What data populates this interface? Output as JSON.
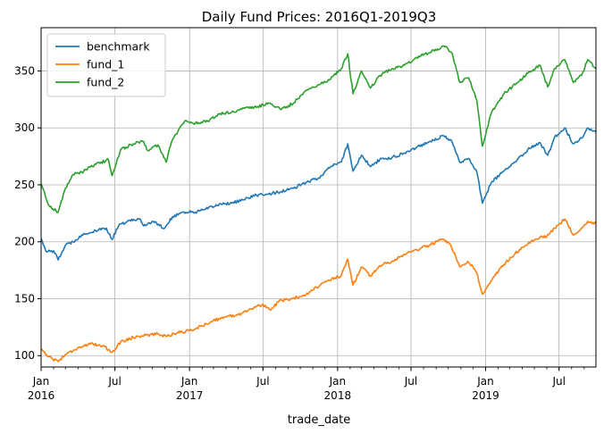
{
  "chart_data": {
    "type": "line",
    "title": "Daily Fund Prices: 2016Q1-2019Q3",
    "xlabel": "trade_date",
    "ylabel": "",
    "x_range": [
      "2016-01-01",
      "2019-09-30"
    ],
    "ylim": [
      90,
      388
    ],
    "grid": true,
    "legend_position": "top-left",
    "x_ticks": [
      {
        "date": "2016-01-01",
        "label": "Jan",
        "sublabel": "2016"
      },
      {
        "date": "2016-07-01",
        "label": "Jul",
        "sublabel": ""
      },
      {
        "date": "2017-01-01",
        "label": "Jan",
        "sublabel": "2017"
      },
      {
        "date": "2017-07-01",
        "label": "Jul",
        "sublabel": ""
      },
      {
        "date": "2018-01-01",
        "label": "Jan",
        "sublabel": "2018"
      },
      {
        "date": "2018-07-01",
        "label": "Jul",
        "sublabel": ""
      },
      {
        "date": "2019-01-01",
        "label": "Jan",
        "sublabel": "2019"
      },
      {
        "date": "2019-07-01",
        "label": "Jul",
        "sublabel": ""
      }
    ],
    "y_ticks": [
      100,
      150,
      200,
      250,
      300,
      350
    ],
    "series": [
      {
        "name": "benchmark",
        "color": "#1f77b4",
        "points": [
          [
            "2016-01-01",
            203
          ],
          [
            "2016-01-15",
            191
          ],
          [
            "2016-02-01",
            192
          ],
          [
            "2016-02-12",
            184
          ],
          [
            "2016-03-01",
            197
          ],
          [
            "2016-03-20",
            200
          ],
          [
            "2016-04-10",
            206
          ],
          [
            "2016-05-01",
            208
          ],
          [
            "2016-05-20",
            210
          ],
          [
            "2016-06-10",
            212
          ],
          [
            "2016-06-24",
            202
          ],
          [
            "2016-07-10",
            214
          ],
          [
            "2016-08-01",
            218
          ],
          [
            "2016-09-01",
            220
          ],
          [
            "2016-09-10",
            214
          ],
          [
            "2016-10-01",
            218
          ],
          [
            "2016-11-01",
            212
          ],
          [
            "2016-11-20",
            222
          ],
          [
            "2016-12-15",
            226
          ],
          [
            "2017-01-15",
            226
          ],
          [
            "2017-02-15",
            229
          ],
          [
            "2017-03-15",
            233
          ],
          [
            "2017-04-15",
            234
          ],
          [
            "2017-05-15",
            237
          ],
          [
            "2017-06-15",
            241
          ],
          [
            "2017-07-15",
            242
          ],
          [
            "2017-08-15",
            244
          ],
          [
            "2017-09-15",
            247
          ],
          [
            "2017-10-15",
            252
          ],
          [
            "2017-11-15",
            256
          ],
          [
            "2017-12-15",
            266
          ],
          [
            "2018-01-10",
            270
          ],
          [
            "2018-01-26",
            286
          ],
          [
            "2018-02-08",
            262
          ],
          [
            "2018-03-01",
            276
          ],
          [
            "2018-03-23",
            266
          ],
          [
            "2018-04-15",
            272
          ],
          [
            "2018-05-15",
            274
          ],
          [
            "2018-06-15",
            278
          ],
          [
            "2018-07-15",
            283
          ],
          [
            "2018-08-15",
            288
          ],
          [
            "2018-09-20",
            293
          ],
          [
            "2018-10-10",
            288
          ],
          [
            "2018-10-29",
            270
          ],
          [
            "2018-11-20",
            273
          ],
          [
            "2018-12-10",
            262
          ],
          [
            "2018-12-24",
            234
          ],
          [
            "2019-01-15",
            252
          ],
          [
            "2019-02-15",
            262
          ],
          [
            "2019-03-15",
            270
          ],
          [
            "2019-04-15",
            281
          ],
          [
            "2019-05-15",
            287
          ],
          [
            "2019-06-03",
            276
          ],
          [
            "2019-06-20",
            292
          ],
          [
            "2019-07-15",
            300
          ],
          [
            "2019-08-05",
            286
          ],
          [
            "2019-08-25",
            291
          ],
          [
            "2019-09-10",
            300
          ],
          [
            "2019-09-30",
            296
          ]
        ]
      },
      {
        "name": "fund_1",
        "color": "#ff7f0e",
        "points": [
          [
            "2016-01-01",
            106
          ],
          [
            "2016-01-20",
            99
          ],
          [
            "2016-02-12",
            95
          ],
          [
            "2016-03-01",
            101
          ],
          [
            "2016-04-01",
            107
          ],
          [
            "2016-05-01",
            110
          ],
          [
            "2016-06-01",
            109
          ],
          [
            "2016-06-24",
            103
          ],
          [
            "2016-07-15",
            112
          ],
          [
            "2016-08-15",
            116
          ],
          [
            "2016-09-15",
            118
          ],
          [
            "2016-10-15",
            119
          ],
          [
            "2016-11-04",
            117
          ],
          [
            "2016-12-01",
            120
          ],
          [
            "2017-01-01",
            122
          ],
          [
            "2017-02-01",
            126
          ],
          [
            "2017-03-01",
            131
          ],
          [
            "2017-04-01",
            134
          ],
          [
            "2017-05-01",
            136
          ],
          [
            "2017-06-01",
            141
          ],
          [
            "2017-07-01",
            145
          ],
          [
            "2017-07-20",
            140
          ],
          [
            "2017-08-10",
            148
          ],
          [
            "2017-09-10",
            150
          ],
          [
            "2017-10-10",
            153
          ],
          [
            "2017-11-10",
            160
          ],
          [
            "2017-12-10",
            166
          ],
          [
            "2018-01-10",
            170
          ],
          [
            "2018-01-26",
            185
          ],
          [
            "2018-02-08",
            162
          ],
          [
            "2018-03-01",
            178
          ],
          [
            "2018-03-23",
            170
          ],
          [
            "2018-04-15",
            179
          ],
          [
            "2018-05-15",
            183
          ],
          [
            "2018-06-15",
            189
          ],
          [
            "2018-07-15",
            193
          ],
          [
            "2018-08-15",
            197
          ],
          [
            "2018-09-15",
            202
          ],
          [
            "2018-10-05",
            198
          ],
          [
            "2018-10-29",
            178
          ],
          [
            "2018-11-20",
            182
          ],
          [
            "2018-12-10",
            173
          ],
          [
            "2018-12-24",
            154
          ],
          [
            "2019-01-15",
            166
          ],
          [
            "2019-02-15",
            180
          ],
          [
            "2019-03-15",
            190
          ],
          [
            "2019-04-15",
            198
          ],
          [
            "2019-05-15",
            204
          ],
          [
            "2019-06-01",
            205
          ],
          [
            "2019-06-20",
            212
          ],
          [
            "2019-07-15",
            220
          ],
          [
            "2019-08-05",
            206
          ],
          [
            "2019-08-25",
            212
          ],
          [
            "2019-09-10",
            218
          ],
          [
            "2019-09-30",
            216
          ]
        ]
      },
      {
        "name": "fund_2",
        "color": "#2ca02c",
        "points": [
          [
            "2016-01-01",
            251
          ],
          [
            "2016-01-20",
            232
          ],
          [
            "2016-02-12",
            226
          ],
          [
            "2016-03-01",
            247
          ],
          [
            "2016-03-20",
            259
          ],
          [
            "2016-04-15",
            262
          ],
          [
            "2016-05-15",
            268
          ],
          [
            "2016-06-15",
            272
          ],
          [
            "2016-06-24",
            258
          ],
          [
            "2016-07-15",
            281
          ],
          [
            "2016-08-15",
            286
          ],
          [
            "2016-09-10",
            288
          ],
          [
            "2016-09-20",
            280
          ],
          [
            "2016-10-15",
            285
          ],
          [
            "2016-11-04",
            270
          ],
          [
            "2016-11-20",
            290
          ],
          [
            "2016-12-20",
            306
          ],
          [
            "2017-01-15",
            304
          ],
          [
            "2017-02-15",
            306
          ],
          [
            "2017-03-15",
            312
          ],
          [
            "2017-04-15",
            314
          ],
          [
            "2017-05-15",
            317
          ],
          [
            "2017-06-15",
            318
          ],
          [
            "2017-07-15",
            322
          ],
          [
            "2017-08-15",
            316
          ],
          [
            "2017-09-15",
            322
          ],
          [
            "2017-10-15",
            333
          ],
          [
            "2017-11-15",
            338
          ],
          [
            "2017-12-15",
            343
          ],
          [
            "2018-01-10",
            352
          ],
          [
            "2018-01-26",
            365
          ],
          [
            "2018-02-08",
            330
          ],
          [
            "2018-03-01",
            350
          ],
          [
            "2018-03-23",
            335
          ],
          [
            "2018-04-15",
            346
          ],
          [
            "2018-05-15",
            352
          ],
          [
            "2018-06-15",
            355
          ],
          [
            "2018-07-15",
            362
          ],
          [
            "2018-08-15",
            366
          ],
          [
            "2018-09-20",
            372
          ],
          [
            "2018-10-10",
            366
          ],
          [
            "2018-10-29",
            340
          ],
          [
            "2018-11-20",
            344
          ],
          [
            "2018-12-10",
            325
          ],
          [
            "2018-12-24",
            284
          ],
          [
            "2019-01-15",
            313
          ],
          [
            "2019-02-15",
            330
          ],
          [
            "2019-03-15",
            338
          ],
          [
            "2019-04-15",
            348
          ],
          [
            "2019-05-15",
            355
          ],
          [
            "2019-06-03",
            336
          ],
          [
            "2019-06-20",
            352
          ],
          [
            "2019-07-15",
            360
          ],
          [
            "2019-08-05",
            340
          ],
          [
            "2019-08-25",
            346
          ],
          [
            "2019-09-10",
            360
          ],
          [
            "2019-09-30",
            352
          ]
        ]
      }
    ]
  }
}
